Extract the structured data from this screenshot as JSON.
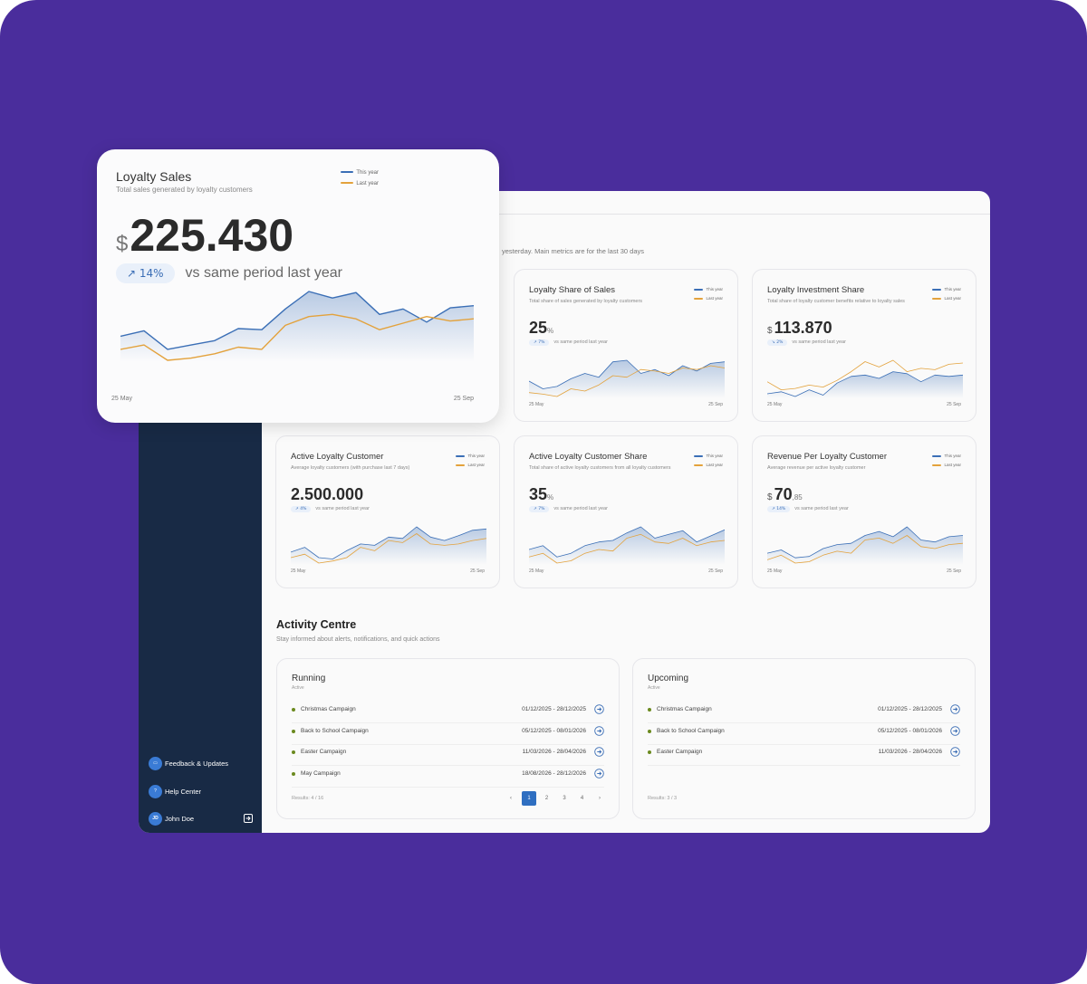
{
  "floating_card": {
    "title": "Loyalty Sales",
    "subtitle": "Total sales generated by loyalty customers",
    "currency": "$",
    "value": "225.430",
    "change": "↗ 14%",
    "change_text": "vs same period last year",
    "start_label": "25 May",
    "end_label": "25 Sep",
    "series": [
      {
        "name": "This year",
        "color": "#3b6fb6",
        "values": [
          32,
          37,
          20,
          24,
          28,
          39,
          38,
          57,
          73,
          67,
          72,
          52,
          57,
          45,
          58,
          60
        ]
      },
      {
        "name": "Last year",
        "color": "#e3a23c",
        "values": [
          20,
          24,
          10,
          12,
          16,
          22,
          20,
          42,
          50,
          52,
          48,
          38,
          44,
          50,
          46,
          48
        ]
      }
    ]
  },
  "header": {
    "subtitle": "yesterday. Main metrics are for the last 30 days"
  },
  "metric_cards": [
    {
      "title": "Loyalty Share of Sales",
      "subtitle": "Total share of sales generated by loyalty customers",
      "value": "25",
      "suffix": "%",
      "change": "↗ 7%",
      "change_text": "vs same period last year",
      "start_label": "25 May",
      "end_label": "25 Sep",
      "series": [
        {
          "name": "This year",
          "color": "#3b6fb6",
          "values": [
            35,
            25,
            28,
            38,
            45,
            40,
            60,
            62,
            45,
            50,
            42,
            55,
            48,
            58,
            60
          ]
        },
        {
          "name": "Last year",
          "color": "#e3a23c",
          "values": [
            20,
            18,
            15,
            25,
            22,
            30,
            42,
            40,
            50,
            48,
            45,
            52,
            50,
            55,
            52
          ]
        }
      ]
    },
    {
      "title": "Loyalty Investment Share",
      "subtitle": "Total share of loyalty customer benefits relative to loyalty sales",
      "currency": "$",
      "value": "113.870",
      "change": "↘ 2%",
      "change_text": "vs same period last year",
      "start_label": "25 May",
      "end_label": "25 Sep",
      "series": [
        {
          "name": "This year",
          "color": "#3b6fb6",
          "values": [
            22,
            25,
            18,
            28,
            20,
            38,
            48,
            50,
            45,
            55,
            52,
            40,
            50,
            48,
            50
          ]
        },
        {
          "name": "Last year",
          "color": "#e3a23c",
          "values": [
            40,
            28,
            30,
            35,
            32,
            42,
            55,
            70,
            62,
            72,
            55,
            60,
            58,
            66,
            68
          ]
        }
      ]
    },
    {
      "title": "Active Loyalty Customer",
      "subtitle": "Average loyalty customers (with purchase last 7 days)",
      "value": "2.500.000",
      "change": "↗ 4%",
      "change_text": "vs same period last year",
      "start_label": "25 May",
      "end_label": "25 Sep",
      "series": [
        {
          "name": "This year",
          "color": "#3b6fb6",
          "values": [
            38,
            45,
            30,
            28,
            40,
            50,
            48,
            60,
            58,
            75,
            60,
            55,
            62,
            70,
            72
          ]
        },
        {
          "name": "Last year",
          "color": "#e3a23c",
          "values": [
            30,
            35,
            22,
            25,
            30,
            45,
            40,
            55,
            52,
            65,
            50,
            48,
            50,
            55,
            58
          ]
        }
      ]
    },
    {
      "title": "Active Loyalty Customer Share",
      "subtitle": "Total share of active loyalty customers from all loyalty customers",
      "value": "35",
      "suffix": "%",
      "change": "↗ 7%",
      "change_text": "vs same period last year",
      "start_label": "25 May",
      "end_label": "25 Sep",
      "series": [
        {
          "name": "This year",
          "color": "#3b6fb6",
          "values": [
            40,
            45,
            30,
            35,
            45,
            50,
            52,
            62,
            70,
            55,
            60,
            65,
            50,
            58,
            66
          ]
        },
        {
          "name": "Last year",
          "color": "#e3a23c",
          "values": [
            30,
            35,
            22,
            25,
            35,
            40,
            38,
            55,
            60,
            50,
            48,
            55,
            45,
            50,
            52
          ]
        }
      ]
    },
    {
      "title": "Revenue Per Loyalty Customer",
      "subtitle": "Average revenue per active loyalty customer",
      "currency": "$",
      "value": "70",
      "suffix": ",85",
      "change": "↗ 14%",
      "change_text": "vs same period last year",
      "start_label": "25 May",
      "end_label": "25 Sep",
      "series": [
        {
          "name": "This year",
          "color": "#3b6fb6",
          "values": [
            35,
            40,
            28,
            30,
            42,
            48,
            50,
            62,
            68,
            60,
            75,
            55,
            52,
            60,
            62
          ]
        },
        {
          "name": "Last year",
          "color": "#e3a23c",
          "values": [
            25,
            32,
            20,
            22,
            32,
            38,
            35,
            55,
            58,
            50,
            62,
            45,
            42,
            48,
            50
          ]
        }
      ]
    }
  ],
  "activity": {
    "title": "Activity Centre",
    "subtitle": "Stay informed about alerts, notifications, and quick actions",
    "panels": [
      {
        "title": "Running",
        "status": "Active",
        "items": [
          {
            "name": "Christmas Campaign",
            "dates": "01/12/2025 - 28/12/2025"
          },
          {
            "name": "Back to School Campaign",
            "dates": "05/12/2025 - 08/01/2026"
          },
          {
            "name": "Easter Campaign",
            "dates": "11/03/2026 - 28/04/2026"
          },
          {
            "name": "May Campaign",
            "dates": "18/08/2026 - 28/12/2026"
          }
        ],
        "results": "Results: 4 / 16",
        "pages": [
          1,
          2,
          3,
          4
        ]
      },
      {
        "title": "Upcoming",
        "status": "Active",
        "items": [
          {
            "name": "Christmas Campaign",
            "dates": "01/12/2025 - 28/12/2025"
          },
          {
            "name": "Back to School Campaign",
            "dates": "05/12/2025 - 08/01/2026"
          },
          {
            "name": "Easter Campaign",
            "dates": "11/03/2026 - 28/04/2026"
          }
        ],
        "results": "Results: 3 / 3"
      }
    ]
  },
  "sidebar": {
    "items": [
      "Feedback & Updates",
      "Help Center"
    ],
    "user": {
      "initials": "JD",
      "name": "John Doe"
    }
  }
}
